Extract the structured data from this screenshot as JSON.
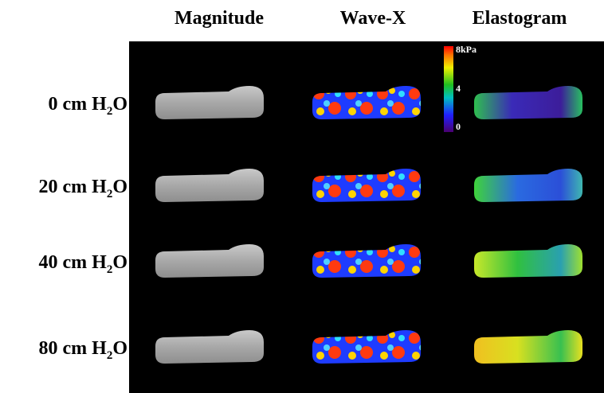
{
  "columns": [
    "Magnitude",
    "Wave-X",
    "Elastogram"
  ],
  "rows": [
    {
      "prefix": "0 cm H",
      "sub": "2",
      "suffix": "O"
    },
    {
      "prefix": "20 cm H",
      "sub": "2",
      "suffix": "O"
    },
    {
      "prefix": "40 cm H",
      "sub": "2",
      "suffix": "O"
    },
    {
      "prefix": "80 cm H",
      "sub": "2",
      "suffix": "O"
    }
  ],
  "colorbar": {
    "max": "8kPa",
    "mid": "4",
    "min": "0"
  }
}
